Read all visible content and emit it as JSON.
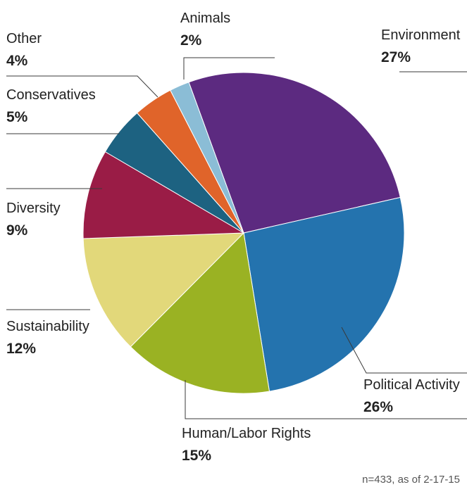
{
  "chart_data": {
    "type": "pie",
    "slices": [
      {
        "label": "Environment",
        "value": 27,
        "value_label": "27%",
        "color": "#5c2a80"
      },
      {
        "label": "Political Activity",
        "value": 26,
        "value_label": "26%",
        "color": "#2473ae"
      },
      {
        "label": "Human/Labor Rights",
        "value": 15,
        "value_label": "15%",
        "color": "#9ab223"
      },
      {
        "label": "Sustainability",
        "value": 12,
        "value_label": "12%",
        "color": "#e2d87a"
      },
      {
        "label": "Diversity",
        "value": 9,
        "value_label": "9%",
        "color": "#9a1c46"
      },
      {
        "label": "Conservatives",
        "value": 5,
        "value_label": "5%",
        "color": "#1d6281"
      },
      {
        "label": "Other",
        "value": 4,
        "value_label": "4%",
        "color": "#e0642a"
      },
      {
        "label": "Animals",
        "value": 2,
        "value_label": "2%",
        "color": "#8bbdd6"
      }
    ],
    "note": "n=433, as of 2-17-15"
  }
}
